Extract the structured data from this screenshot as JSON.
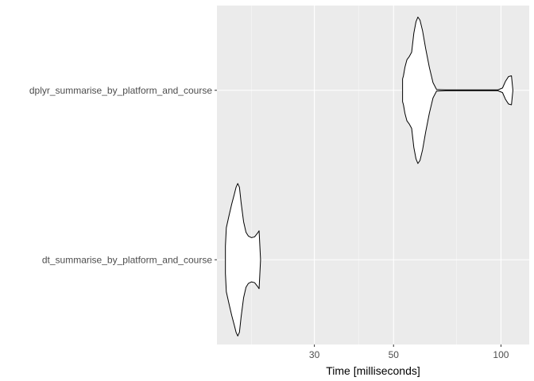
{
  "chart_data": {
    "type": "violin",
    "title": "",
    "xlabel": "Time [milliseconds]",
    "ylabel": "",
    "x_scale": "log10",
    "xlim": [
      16,
      120
    ],
    "x_ticks": [
      30,
      50,
      100
    ],
    "x_tick_labels": [
      "30",
      "50",
      "100"
    ],
    "x_minor_ticks": [
      20,
      40,
      75
    ],
    "categories": [
      "dt_summarise_by_platform_and_course",
      "dplyr_summarise_by_platform_and_course"
    ],
    "grid": true,
    "legend": "none",
    "colors": {
      "panel_background": "#ebebeb",
      "grid_major": "#ffffff",
      "grid_minor": "#f7f7f7",
      "violin_fill": "#ffffff",
      "violin_stroke": "#000000",
      "tick_label": "#4d4d4d",
      "axis_title": "#000000"
    },
    "series": [
      {
        "category": "dt_summarise_by_platform_and_course",
        "profile": [
          [
            16.9,
            0.18
          ],
          [
            17.0,
            0.42
          ],
          [
            17.3,
            0.58
          ],
          [
            17.6,
            0.73
          ],
          [
            17.9,
            0.86
          ],
          [
            18.1,
            0.95
          ],
          [
            18.3,
            1.0
          ],
          [
            18.5,
            0.95
          ],
          [
            18.7,
            0.75
          ],
          [
            19.0,
            0.5
          ],
          [
            19.3,
            0.36
          ],
          [
            19.6,
            0.31
          ],
          [
            20.0,
            0.29
          ],
          [
            20.4,
            0.3
          ],
          [
            20.8,
            0.35
          ],
          [
            21.0,
            0.38
          ],
          [
            21.1,
            0.19
          ],
          [
            21.2,
            0.0
          ]
        ]
      },
      {
        "category": "dplyr_summarise_by_platform_and_course",
        "profile": [
          [
            53.0,
            0.15
          ],
          [
            53.3,
            0.19
          ],
          [
            53.8,
            0.3
          ],
          [
            54.5,
            0.4
          ],
          [
            55.3,
            0.44
          ],
          [
            56.2,
            0.5
          ],
          [
            57.0,
            0.75
          ],
          [
            57.8,
            0.9
          ],
          [
            58.5,
            0.96
          ],
          [
            59.3,
            0.92
          ],
          [
            60.3,
            0.78
          ],
          [
            61.5,
            0.55
          ],
          [
            63.0,
            0.3
          ],
          [
            64.5,
            0.1
          ],
          [
            66.0,
            0.01
          ],
          [
            70.0,
            0.005
          ],
          [
            80.0,
            0.005
          ],
          [
            90.0,
            0.005
          ],
          [
            98.0,
            0.005
          ],
          [
            101.0,
            0.03
          ],
          [
            103.0,
            0.12
          ],
          [
            105.0,
            0.18
          ],
          [
            107.0,
            0.19
          ],
          [
            108.0,
            0.0
          ]
        ]
      }
    ]
  }
}
